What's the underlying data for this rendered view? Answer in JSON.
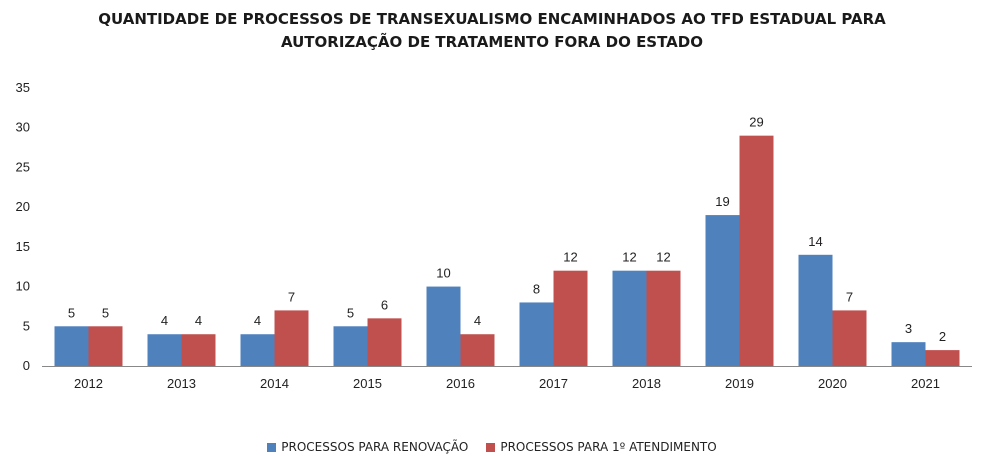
{
  "chart_data": {
    "type": "bar",
    "title_lines": [
      "QUANTIDADE DE PROCESSOS DE TRANSEXUALISMO ENCAMINHADOS AO TFD ESTADUAL PARA",
      "AUTORIZAÇÃO DE TRATAMENTO FORA DO ESTADO"
    ],
    "categories": [
      "2012",
      "2013",
      "2014",
      "2015",
      "2016",
      "2017",
      "2018",
      "2019",
      "2020",
      "2021"
    ],
    "series": [
      {
        "name": "PROCESSOS PARA RENOVAÇÃO",
        "color": "#4f81bd",
        "values": [
          5,
          4,
          4,
          5,
          10,
          8,
          12,
          19,
          14,
          3
        ]
      },
      {
        "name": "PROCESSOS PARA 1º ATENDIMENTO",
        "color": "#c0504d",
        "values": [
          5,
          4,
          7,
          6,
          4,
          12,
          12,
          29,
          7,
          2
        ]
      }
    ],
    "ylim": [
      0,
      35
    ],
    "yticks": [
      "0",
      "5",
      "10",
      "15",
      "20",
      "25",
      "30",
      "35"
    ],
    "grid": false,
    "legend_position": "bottom"
  }
}
